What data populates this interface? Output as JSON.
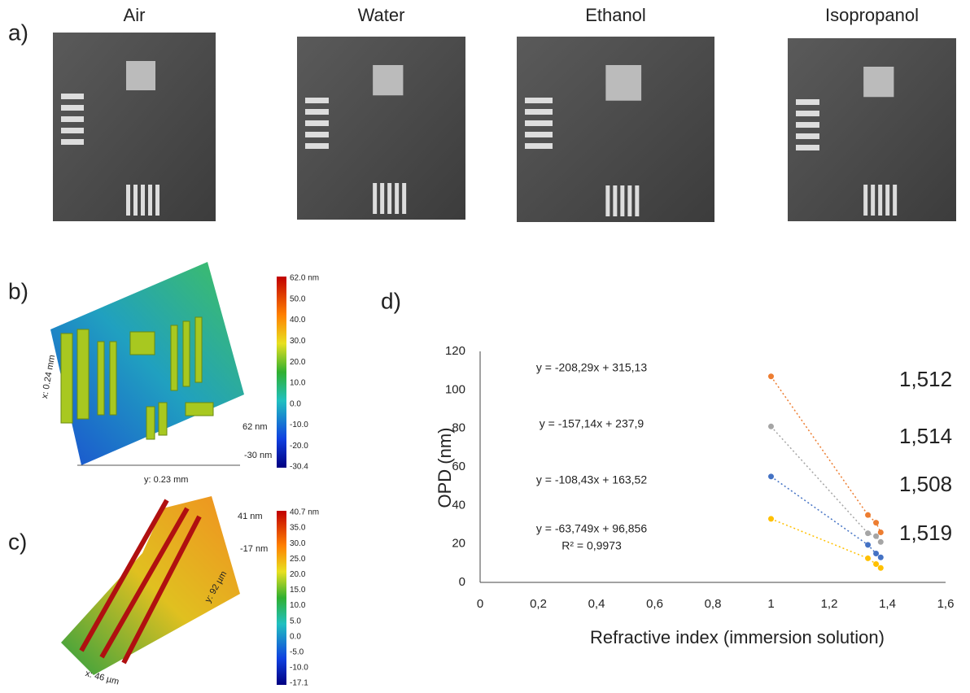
{
  "panels": {
    "a": {
      "label": "a)",
      "images": [
        "Air",
        "Water",
        "Ethanol",
        "Isopropanol"
      ]
    },
    "b": {
      "label": "b)",
      "colorbar": [
        "62.0 nm",
        "50.0",
        "40.0",
        "30.0",
        "20.0",
        "10.0",
        "0.0",
        "-10.0",
        "-20.0",
        "-30.4"
      ],
      "axis_labels": {
        "x": "x: 0.24 mm",
        "y": "y: 0.23 mm",
        "z_top": "62 nm",
        "z_bottom": "-30 nm"
      }
    },
    "c": {
      "label": "c)",
      "colorbar": [
        "40.7 nm",
        "35.0",
        "30.0",
        "25.0",
        "20.0",
        "15.0",
        "10.0",
        "5.0",
        "0.0",
        "-5.0",
        "-10.0",
        "-17.1"
      ],
      "axis_labels": {
        "x": "x: 46 µm",
        "y": "y: 92 µm",
        "z_top": "41 nm",
        "z_bottom": "-17 nm"
      }
    },
    "d": {
      "label": "d)"
    }
  },
  "chart_data": {
    "type": "scatter",
    "xlabel": "Refractive index (immersion solution)",
    "ylabel": "OPD (nm)",
    "x": [
      1,
      1.333,
      1.361,
      1.377
    ],
    "series": [
      {
        "name": "1,512",
        "color": "#ed7d31",
        "equation": "y = -208,29x + 315,13",
        "values": [
          107,
          35,
          31,
          26
        ]
      },
      {
        "name": "1,514",
        "color": "#a5a5a5",
        "equation": "y = -157,14x + 237,9",
        "values": [
          81,
          25.5,
          24,
          21
        ]
      },
      {
        "name": "1,508",
        "color": "#4472c4",
        "equation": "y = -108,43x + 163,52",
        "values": [
          55,
          19.5,
          15,
          13
        ]
      },
      {
        "name": "1,519",
        "color": "#ffc000",
        "equation": "y = -63,749x + 96,856",
        "values": [
          33,
          12.5,
          9.5,
          7.5
        ]
      }
    ],
    "r_squared": "R² = 0,9973",
    "xlim": [
      0,
      1.6
    ],
    "ylim": [
      0,
      120
    ],
    "xticks": [
      0,
      {
        "value": 0.2,
        "label": "0,2"
      },
      {
        "value": 0.4,
        "label": "0,4"
      },
      {
        "value": 0.6,
        "label": "0,6"
      },
      {
        "value": 0.8,
        "label": "0,8"
      },
      1,
      {
        "value": 1.2,
        "label": "1,2"
      },
      {
        "value": 1.4,
        "label": "1,4"
      },
      {
        "value": 1.6,
        "label": "1,6"
      }
    ],
    "yticks": [
      0,
      20,
      40,
      60,
      80,
      100,
      120
    ]
  }
}
